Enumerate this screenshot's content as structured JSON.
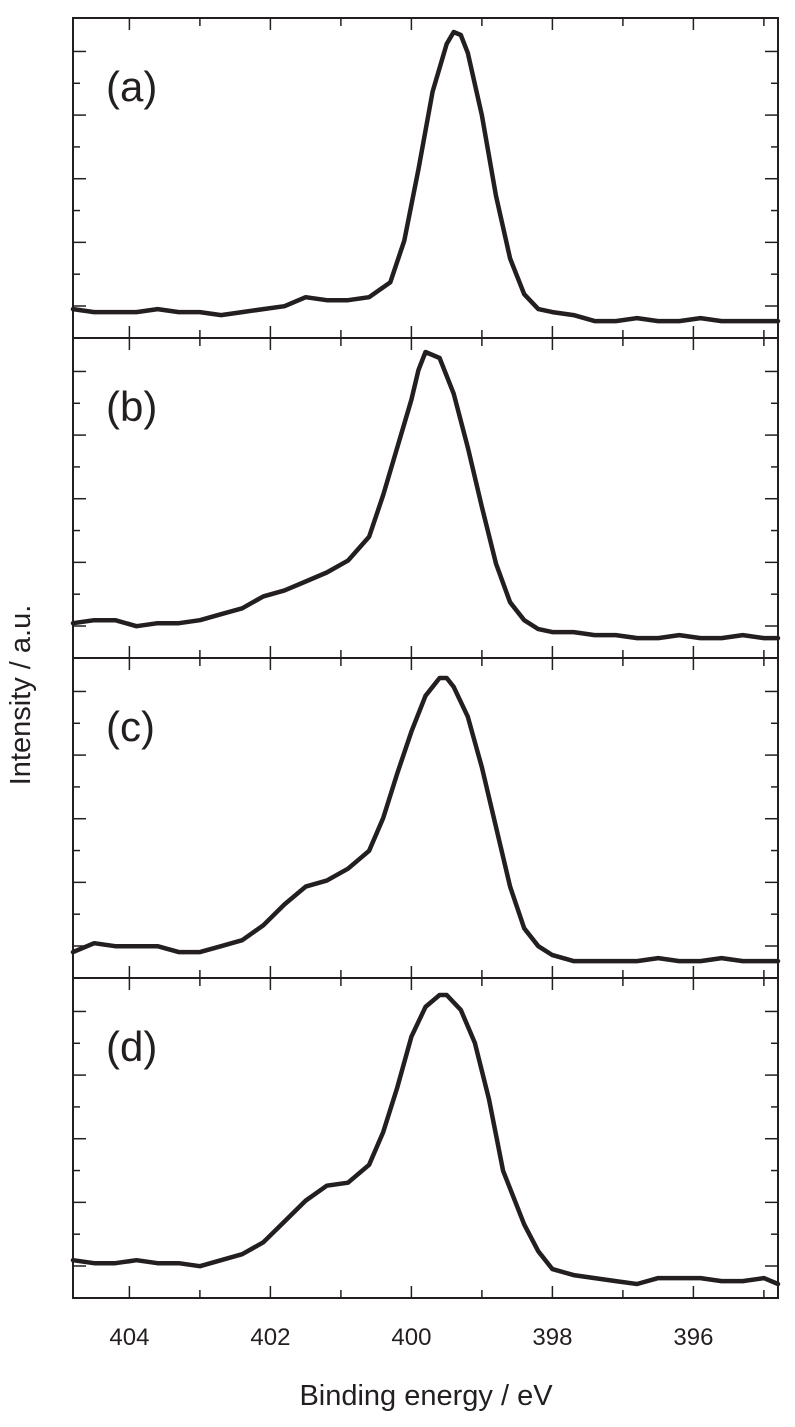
{
  "figure": {
    "xlabel": "Binding energy / eV",
    "ylabel": "Intensity / a.u."
  },
  "chart_data": [
    {
      "type": "line",
      "panel_label": "(a)",
      "xlabel": "Binding energy / eV",
      "ylabel": "Intensity / a.u.",
      "xlim": [
        404.8,
        394.8
      ],
      "x_reversed": true,
      "ylim": [
        0,
        1
      ],
      "series": [
        {
          "x": [
            404.8,
            404.5,
            404.2,
            403.9,
            403.6,
            403.3,
            403.0,
            402.7,
            402.4,
            402.1,
            401.8,
            401.5,
            401.2,
            400.9,
            400.6,
            400.3,
            400.1,
            399.9,
            399.7,
            399.5,
            399.4,
            399.3,
            399.2,
            399.0,
            398.8,
            398.6,
            398.4,
            398.2,
            398.0,
            397.7,
            397.4,
            397.1,
            396.8,
            396.5,
            396.2,
            395.9,
            395.6,
            395.3,
            395.0,
            394.8
          ],
          "y": [
            0.07,
            0.06,
            0.06,
            0.06,
            0.07,
            0.06,
            0.06,
            0.05,
            0.06,
            0.07,
            0.08,
            0.11,
            0.1,
            0.1,
            0.11,
            0.16,
            0.3,
            0.54,
            0.8,
            0.96,
            1.0,
            0.99,
            0.93,
            0.72,
            0.45,
            0.24,
            0.12,
            0.07,
            0.06,
            0.05,
            0.03,
            0.03,
            0.04,
            0.03,
            0.03,
            0.04,
            0.03,
            0.03,
            0.03,
            0.03
          ]
        }
      ]
    },
    {
      "type": "line",
      "panel_label": "(b)",
      "xlabel": "Binding energy / eV",
      "ylabel": "Intensity / a.u.",
      "xlim": [
        404.8,
        394.8
      ],
      "x_reversed": true,
      "ylim": [
        0,
        1
      ],
      "series": [
        {
          "x": [
            404.8,
            404.5,
            404.2,
            403.9,
            403.6,
            403.3,
            403.0,
            402.7,
            402.4,
            402.1,
            401.8,
            401.5,
            401.2,
            400.9,
            400.6,
            400.4,
            400.2,
            400.0,
            399.9,
            399.8,
            399.6,
            399.4,
            399.2,
            399.0,
            398.8,
            398.6,
            398.4,
            398.2,
            398.0,
            397.7,
            397.4,
            397.1,
            396.8,
            396.5,
            396.2,
            395.9,
            395.6,
            395.3,
            395.0,
            394.8
          ],
          "y": [
            0.09,
            0.1,
            0.1,
            0.08,
            0.09,
            0.09,
            0.1,
            0.12,
            0.14,
            0.18,
            0.2,
            0.23,
            0.26,
            0.3,
            0.38,
            0.52,
            0.68,
            0.84,
            0.94,
            1.0,
            0.98,
            0.86,
            0.68,
            0.48,
            0.29,
            0.16,
            0.1,
            0.07,
            0.06,
            0.06,
            0.05,
            0.05,
            0.04,
            0.04,
            0.05,
            0.04,
            0.04,
            0.05,
            0.04,
            0.04
          ]
        }
      ]
    },
    {
      "type": "line",
      "panel_label": "(c)",
      "xlabel": "Binding energy / eV",
      "ylabel": "Intensity / a.u.",
      "xlim": [
        404.8,
        394.8
      ],
      "x_reversed": true,
      "ylim": [
        0,
        1
      ],
      "series": [
        {
          "x": [
            404.8,
            404.5,
            404.2,
            403.9,
            403.6,
            403.3,
            403.0,
            402.7,
            402.4,
            402.1,
            401.8,
            401.5,
            401.2,
            400.9,
            400.6,
            400.4,
            400.2,
            400.0,
            399.8,
            399.6,
            399.5,
            399.4,
            399.2,
            399.0,
            398.8,
            398.6,
            398.4,
            398.2,
            398.0,
            397.7,
            397.4,
            397.1,
            396.8,
            396.5,
            396.2,
            395.9,
            395.6,
            395.3,
            395.0,
            394.8
          ],
          "y": [
            0.06,
            0.09,
            0.08,
            0.08,
            0.08,
            0.06,
            0.06,
            0.08,
            0.1,
            0.15,
            0.22,
            0.28,
            0.3,
            0.34,
            0.4,
            0.51,
            0.66,
            0.8,
            0.92,
            0.98,
            0.98,
            0.95,
            0.85,
            0.68,
            0.48,
            0.28,
            0.14,
            0.08,
            0.05,
            0.03,
            0.03,
            0.03,
            0.03,
            0.04,
            0.03,
            0.03,
            0.04,
            0.03,
            0.03,
            0.03
          ]
        }
      ]
    },
    {
      "type": "line",
      "panel_label": "(d)",
      "xlabel": "Binding energy / eV",
      "ylabel": "Intensity / a.u.",
      "xlim": [
        404.8,
        394.8
      ],
      "x_reversed": true,
      "ylim": [
        0,
        1
      ],
      "xticks": [
        404,
        402,
        400,
        398,
        396
      ],
      "series": [
        {
          "x": [
            404.8,
            404.5,
            404.2,
            403.9,
            403.6,
            403.3,
            403.0,
            402.7,
            402.4,
            402.1,
            401.8,
            401.5,
            401.2,
            400.9,
            400.6,
            400.4,
            400.2,
            400.0,
            399.8,
            399.6,
            399.5,
            399.3,
            399.1,
            398.9,
            398.7,
            398.4,
            398.2,
            398.0,
            397.7,
            397.4,
            397.1,
            396.8,
            396.5,
            396.2,
            395.9,
            395.6,
            395.3,
            395.0,
            394.8
          ],
          "y": [
            0.1,
            0.09,
            0.09,
            0.1,
            0.09,
            0.09,
            0.08,
            0.1,
            0.12,
            0.16,
            0.23,
            0.3,
            0.35,
            0.36,
            0.42,
            0.53,
            0.68,
            0.85,
            0.95,
            0.99,
            0.99,
            0.94,
            0.83,
            0.64,
            0.4,
            0.22,
            0.13,
            0.07,
            0.05,
            0.04,
            0.03,
            0.02,
            0.04,
            0.04,
            0.04,
            0.03,
            0.03,
            0.04,
            0.02
          ]
        }
      ]
    }
  ]
}
